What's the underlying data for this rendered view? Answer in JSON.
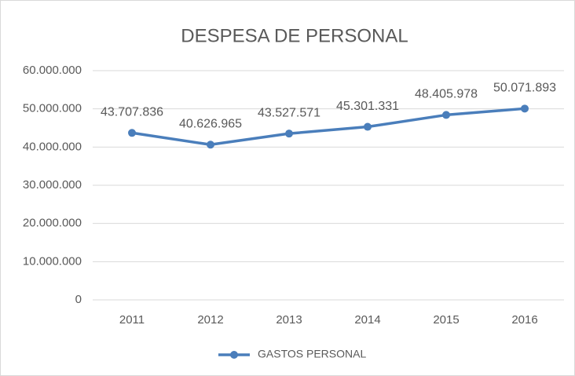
{
  "chart_data": {
    "type": "line",
    "title": "DESPESA DE PERSONAL",
    "categories": [
      "2011",
      "2012",
      "2013",
      "2014",
      "2015",
      "2016"
    ],
    "series": [
      {
        "name": "GASTOS PERSONAL",
        "color": "#4a7ebb",
        "values": [
          43707836,
          40626965,
          43527571,
          45301331,
          48405978,
          50071893
        ],
        "value_labels": [
          "43.707.836",
          "40.626.965",
          "43.527.571",
          "45.301.331",
          "48.405.978",
          "50.071.893"
        ]
      }
    ],
    "ylim": [
      0,
      60000000
    ],
    "yticks": [
      0,
      {
        "value": 10000000,
        "label": "10.000.000"
      },
      {
        "value": 20000000,
        "label": "20.000.000"
      },
      {
        "value": 30000000,
        "label": "30.000.000"
      },
      {
        "value": 40000000,
        "label": "40.000.000"
      },
      {
        "value": 50000000,
        "label": "50.000.000"
      },
      {
        "value": 60000000,
        "label": "60.000.000"
      }
    ],
    "grid": true,
    "legend": "bottom"
  }
}
